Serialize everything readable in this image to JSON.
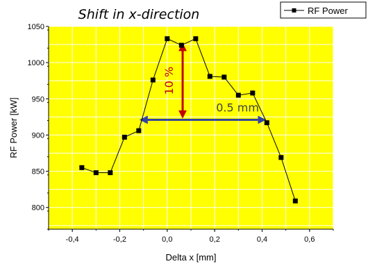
{
  "chart_data": {
    "type": "line",
    "title": "Shift in x-direction",
    "xlabel": "Delta x [mm]",
    "ylabel": "RF Power [kW]",
    "xlim": [
      -0.5,
      0.7
    ],
    "ylim": [
      770,
      1050
    ],
    "x_ticks": [
      -0.4,
      -0.2,
      0.0,
      0.2,
      0.4,
      0.6
    ],
    "x_tick_labels": [
      "-0,4",
      "-0,2",
      "0,0",
      "0,2",
      "0,4",
      "0,6"
    ],
    "y_ticks": [
      800,
      850,
      900,
      950,
      1000,
      1050
    ],
    "y_tick_labels": [
      "800",
      "850",
      "900",
      "950",
      "1000",
      "1050"
    ],
    "grid": true,
    "background_color": "#ffff00",
    "legend_position": "top-right",
    "series": [
      {
        "name": "RF Power",
        "color": "#000000",
        "marker": "square",
        "x": [
          -0.36,
          -0.3,
          -0.24,
          -0.18,
          -0.12,
          -0.06,
          0.0,
          0.06,
          0.12,
          0.18,
          0.24,
          0.3,
          0.36,
          0.42,
          0.48,
          0.54
        ],
        "y": [
          855,
          848,
          848,
          897,
          906,
          976,
          1033,
          1024,
          1033,
          981,
          980,
          955,
          958,
          917,
          869,
          809
        ]
      }
    ],
    "annotations": [
      {
        "text": "10 %",
        "color": "#c00000",
        "kind": "vertical-double-arrow",
        "x": 0.065,
        "y_from": 925,
        "y_to": 1025
      },
      {
        "text": "0.5 mm",
        "color": "#3344a0",
        "kind": "horizontal-double-arrow",
        "y": 921,
        "x_from": -0.11,
        "x_to": 0.41
      }
    ]
  }
}
